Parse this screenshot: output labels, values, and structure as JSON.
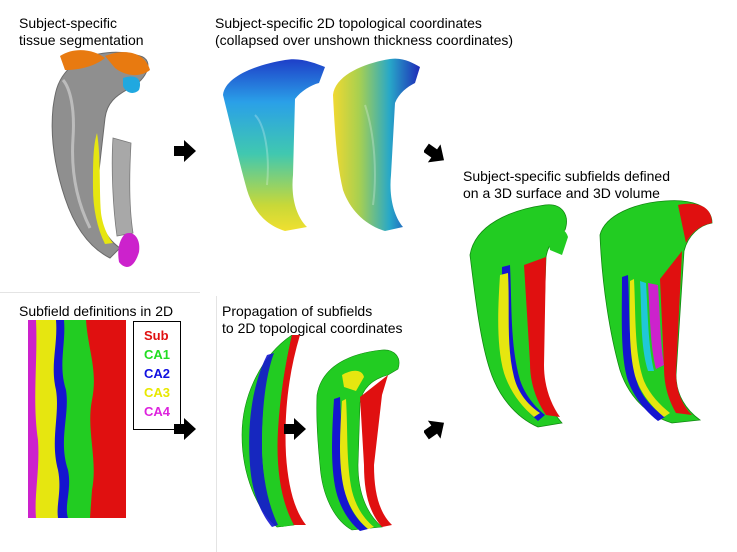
{
  "labels": {
    "segmentation": "Subject-specific\ntissue segmentation",
    "topo_coords": "Subject-specific 2D topological coordinates\n(collapsed over unshown thickness coordinates)",
    "subfields_3d": "Subject-specific subfields defined\non a 3D surface and 3D volume",
    "definitions_2d": "Subfield definitions in 2D",
    "propagation": "Propagation of subfields\nto 2D topological coordinates"
  },
  "legend": [
    {
      "name": "Sub",
      "color": "#e01010"
    },
    {
      "name": "CA1",
      "color": "#22dd22"
    },
    {
      "name": "CA2",
      "color": "#1010e0"
    },
    {
      "name": "CA3",
      "color": "#e8e800"
    },
    {
      "name": "CA4",
      "color": "#dd22dd"
    }
  ],
  "colors": {
    "sub": "#e01010",
    "ca1": "#22cc22",
    "ca2": "#1515d0",
    "ca3": "#e6e610",
    "ca4": "#cc22cc",
    "tissue": "#9a9a9a",
    "orange": "#e87a10",
    "cyan": "#20a8e0"
  }
}
